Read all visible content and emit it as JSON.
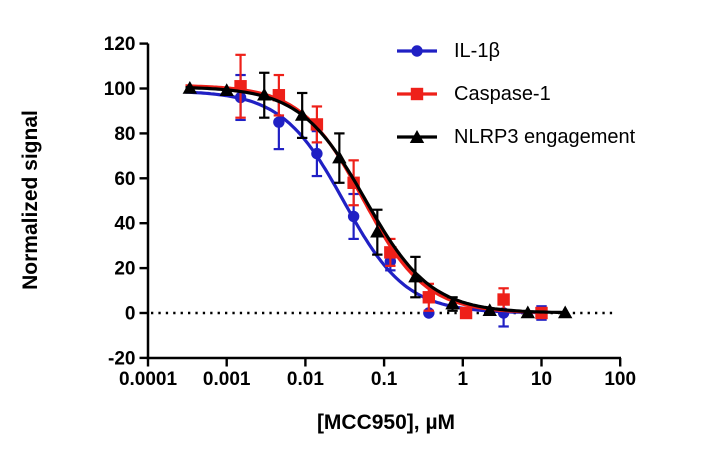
{
  "figure": {
    "background": "#ffffff",
    "axis_color": "#000000",
    "text_color": "#000000"
  },
  "chart_data": {
    "type": "scatter",
    "title": "",
    "xlabel": "[MCC950], µM",
    "ylabel": "Normalized signal",
    "x_scale": "log10",
    "xlim": [
      0.0001,
      100
    ],
    "ylim": [
      -20,
      120
    ],
    "x_ticks": [
      0.0001,
      0.001,
      0.01,
      0.1,
      1,
      10,
      100
    ],
    "x_tick_labels": [
      "0.0001",
      "0.001",
      "0.01",
      "0.1",
      "1",
      "10",
      "100"
    ],
    "y_ticks": [
      120,
      100,
      80,
      60,
      40,
      20,
      0,
      -20
    ],
    "y_tick_labels": [
      "120",
      "100",
      "80",
      "60",
      "40",
      "20",
      "0",
      "-20"
    ],
    "grid": false,
    "legend_position": "top-right",
    "zero_line": {
      "y": 0,
      "style": "dotted",
      "color": "#000000"
    },
    "series": [
      {
        "key": "il1b",
        "name": "IL-1β",
        "color": "#2020C4",
        "marker": "circle",
        "x": [
          0.0015,
          0.0046,
          0.014,
          0.041,
          0.12,
          0.37,
          1.1,
          3.3,
          10
        ],
        "y": [
          96,
          85,
          71,
          43,
          23,
          0,
          0,
          0,
          0
        ],
        "err": [
          10,
          12,
          10,
          10,
          4,
          0,
          0,
          6,
          3
        ],
        "fit": {
          "model": "4PL",
          "top": 99,
          "bottom": 0,
          "ic50": 0.031,
          "hill": 1.1,
          "x_start": 0.0003,
          "x_end": 10
        }
      },
      {
        "key": "caspase1",
        "name": "Caspase-1",
        "color": "#EE2019",
        "marker": "square",
        "x": [
          0.0015,
          0.0046,
          0.014,
          0.041,
          0.12,
          0.37,
          1.1,
          3.3,
          10
        ],
        "y": [
          101,
          97,
          84,
          58,
          27,
          7,
          0,
          6,
          0
        ],
        "err": [
          14,
          9,
          8,
          10,
          6,
          6,
          0,
          5,
          0
        ],
        "fit": {
          "model": "4PL",
          "top": 101.5,
          "bottom": 0,
          "ic50": 0.054,
          "hill": 1.1,
          "x_start": 0.0003,
          "x_end": 10
        }
      },
      {
        "key": "nlrp3",
        "name": "NLRP3 engagement",
        "color": "#000000",
        "marker": "triangle",
        "x": [
          0.00034,
          0.001,
          0.003,
          0.0091,
          0.027,
          0.082,
          0.25,
          0.74,
          2.2,
          6.7,
          20
        ],
        "y": [
          100,
          99,
          97,
          88,
          69,
          36,
          16,
          4,
          1,
          0,
          0
        ],
        "err": [
          0,
          0,
          10,
          10,
          11,
          10,
          9,
          3,
          0,
          0,
          0
        ],
        "fit": {
          "model": "4PL",
          "top": 100.8,
          "bottom": 0,
          "ic50": 0.058,
          "hill": 1.05,
          "x_start": 0.0003,
          "x_end": 20
        }
      }
    ]
  }
}
